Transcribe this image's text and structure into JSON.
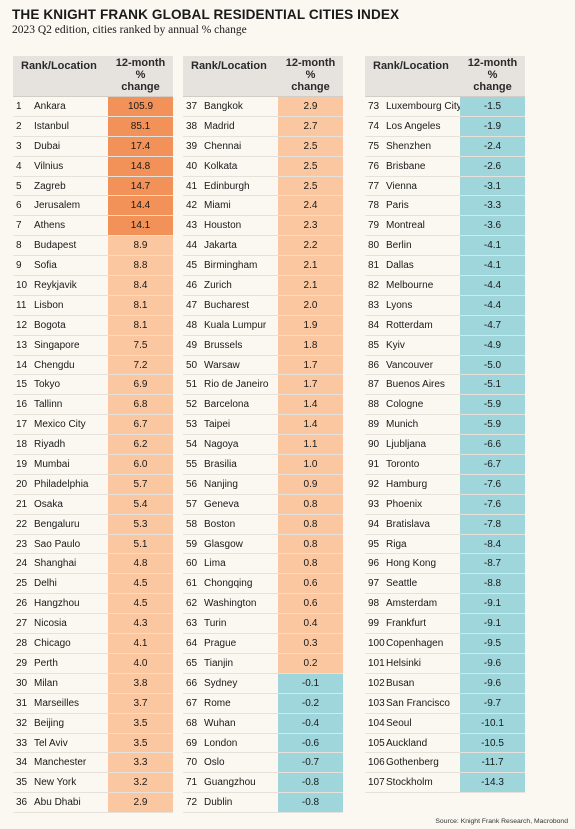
{
  "title": "THE KNIGHT FRANK GLOBAL RESIDENTIAL CITIES INDEX",
  "subtitle": "2023 Q2 edition, cities ranked by annual % change",
  "source": "Source: Knight Frank Research, Macrobond",
  "colors": {
    "dark_orange": "#f29258",
    "light_orange": "#fbc7a0",
    "teal": "#9fd6dc"
  },
  "chart_data": {
    "type": "table",
    "columns": [
      "Rank/Location",
      "12-month % change"
    ],
    "header": {
      "location": "Rank/Location",
      "change_line1": "12-month",
      "change_line2": "%",
      "change_line3": "change"
    },
    "rows": [
      {
        "rank": 1,
        "city": "Ankara",
        "change": "105.9"
      },
      {
        "rank": 2,
        "city": "Istanbul",
        "change": "85.1"
      },
      {
        "rank": 3,
        "city": "Dubai",
        "change": "17.4"
      },
      {
        "rank": 4,
        "city": "Vilnius",
        "change": "14.8"
      },
      {
        "rank": 5,
        "city": "Zagreb",
        "change": "14.7"
      },
      {
        "rank": 6,
        "city": "Jerusalem",
        "change": "14.4"
      },
      {
        "rank": 7,
        "city": "Athens",
        "change": "14.1"
      },
      {
        "rank": 8,
        "city": "Budapest",
        "change": "8.9"
      },
      {
        "rank": 9,
        "city": "Sofia",
        "change": "8.8"
      },
      {
        "rank": 10,
        "city": "Reykjavik",
        "change": "8.4"
      },
      {
        "rank": 11,
        "city": "Lisbon",
        "change": "8.1"
      },
      {
        "rank": 12,
        "city": "Bogota",
        "change": "8.1"
      },
      {
        "rank": 13,
        "city": "Singapore",
        "change": "7.5"
      },
      {
        "rank": 14,
        "city": "Chengdu",
        "change": "7.2"
      },
      {
        "rank": 15,
        "city": "Tokyo",
        "change": "6.9"
      },
      {
        "rank": 16,
        "city": "Tallinn",
        "change": "6.8"
      },
      {
        "rank": 17,
        "city": "Mexico City",
        "change": "6.7"
      },
      {
        "rank": 18,
        "city": "Riyadh",
        "change": "6.2"
      },
      {
        "rank": 19,
        "city": "Mumbai",
        "change": "6.0"
      },
      {
        "rank": 20,
        "city": "Philadelphia",
        "change": "5.7"
      },
      {
        "rank": 21,
        "city": "Osaka",
        "change": "5.4"
      },
      {
        "rank": 22,
        "city": "Bengaluru",
        "change": "5.3"
      },
      {
        "rank": 23,
        "city": "Sao Paulo",
        "change": "5.1"
      },
      {
        "rank": 24,
        "city": "Shanghai",
        "change": "4.8"
      },
      {
        "rank": 25,
        "city": "Delhi",
        "change": "4.5"
      },
      {
        "rank": 26,
        "city": "Hangzhou",
        "change": "4.5"
      },
      {
        "rank": 27,
        "city": "Nicosia",
        "change": "4.3"
      },
      {
        "rank": 28,
        "city": "Chicago",
        "change": "4.1"
      },
      {
        "rank": 29,
        "city": "Perth",
        "change": "4.0"
      },
      {
        "rank": 30,
        "city": "Milan",
        "change": "3.8"
      },
      {
        "rank": 31,
        "city": "Marseilles",
        "change": "3.7"
      },
      {
        "rank": 32,
        "city": "Beijing",
        "change": "3.5"
      },
      {
        "rank": 33,
        "city": "Tel Aviv",
        "change": "3.5"
      },
      {
        "rank": 34,
        "city": "Manchester",
        "change": "3.3"
      },
      {
        "rank": 35,
        "city": "New York",
        "change": "3.2"
      },
      {
        "rank": 36,
        "city": "Abu Dhabi",
        "change": "2.9"
      },
      {
        "rank": 37,
        "city": "Bangkok",
        "change": "2.9"
      },
      {
        "rank": 38,
        "city": "Madrid",
        "change": "2.7"
      },
      {
        "rank": 39,
        "city": "Chennai",
        "change": "2.5"
      },
      {
        "rank": 40,
        "city": "Kolkata",
        "change": "2.5"
      },
      {
        "rank": 41,
        "city": "Edinburgh",
        "change": "2.5"
      },
      {
        "rank": 42,
        "city": "Miami",
        "change": "2.4"
      },
      {
        "rank": 43,
        "city": "Houston",
        "change": "2.3"
      },
      {
        "rank": 44,
        "city": "Jakarta",
        "change": "2.2"
      },
      {
        "rank": 45,
        "city": "Birmingham",
        "change": "2.1"
      },
      {
        "rank": 46,
        "city": "Zurich",
        "change": "2.1"
      },
      {
        "rank": 47,
        "city": "Bucharest",
        "change": "2.0"
      },
      {
        "rank": 48,
        "city": "Kuala Lumpur",
        "change": "1.9"
      },
      {
        "rank": 49,
        "city": "Brussels",
        "change": "1.8"
      },
      {
        "rank": 50,
        "city": "Warsaw",
        "change": "1.7"
      },
      {
        "rank": 51,
        "city": "Rio de Janeiro",
        "change": "1.7"
      },
      {
        "rank": 52,
        "city": "Barcelona",
        "change": "1.4"
      },
      {
        "rank": 53,
        "city": "Taipei",
        "change": "1.4"
      },
      {
        "rank": 54,
        "city": "Nagoya",
        "change": "1.1"
      },
      {
        "rank": 55,
        "city": "Brasilia",
        "change": "1.0"
      },
      {
        "rank": 56,
        "city": "Nanjing",
        "change": "0.9"
      },
      {
        "rank": 57,
        "city": "Geneva",
        "change": "0.8"
      },
      {
        "rank": 58,
        "city": "Boston",
        "change": "0.8"
      },
      {
        "rank": 59,
        "city": "Glasgow",
        "change": "0.8"
      },
      {
        "rank": 60,
        "city": "Lima",
        "change": "0.8"
      },
      {
        "rank": 61,
        "city": "Chongqing",
        "change": "0.6"
      },
      {
        "rank": 62,
        "city": "Washington",
        "change": "0.6"
      },
      {
        "rank": 63,
        "city": "Turin",
        "change": "0.4"
      },
      {
        "rank": 64,
        "city": "Prague",
        "change": "0.3"
      },
      {
        "rank": 65,
        "city": "Tianjin",
        "change": "0.2"
      },
      {
        "rank": 66,
        "city": "Sydney",
        "change": "-0.1"
      },
      {
        "rank": 67,
        "city": "Rome",
        "change": "-0.2"
      },
      {
        "rank": 68,
        "city": "Wuhan",
        "change": "-0.4"
      },
      {
        "rank": 69,
        "city": "London",
        "change": "-0.6"
      },
      {
        "rank": 70,
        "city": "Oslo",
        "change": "-0.7"
      },
      {
        "rank": 71,
        "city": "Guangzhou",
        "change": "-0.8"
      },
      {
        "rank": 72,
        "city": "Dublin",
        "change": "-0.8"
      },
      {
        "rank": 73,
        "city": "Luxembourg City",
        "change": "-1.5"
      },
      {
        "rank": 74,
        "city": "Los Angeles",
        "change": "-1.9"
      },
      {
        "rank": 75,
        "city": "Shenzhen",
        "change": "-2.4"
      },
      {
        "rank": 76,
        "city": "Brisbane",
        "change": "-2.6"
      },
      {
        "rank": 77,
        "city": "Vienna",
        "change": "-3.1"
      },
      {
        "rank": 78,
        "city": "Paris",
        "change": "-3.3"
      },
      {
        "rank": 79,
        "city": "Montreal",
        "change": "-3.6"
      },
      {
        "rank": 80,
        "city": "Berlin",
        "change": "-4.1"
      },
      {
        "rank": 81,
        "city": "Dallas",
        "change": "-4.1"
      },
      {
        "rank": 82,
        "city": "Melbourne",
        "change": "-4.4"
      },
      {
        "rank": 83,
        "city": "Lyons",
        "change": "-4.4"
      },
      {
        "rank": 84,
        "city": "Rotterdam",
        "change": "-4.7"
      },
      {
        "rank": 85,
        "city": "Kyiv",
        "change": "-4.9"
      },
      {
        "rank": 86,
        "city": "Vancouver",
        "change": "-5.0"
      },
      {
        "rank": 87,
        "city": "Buenos Aires",
        "change": "-5.1"
      },
      {
        "rank": 88,
        "city": "Cologne",
        "change": "-5.9"
      },
      {
        "rank": 89,
        "city": "Munich",
        "change": "-5.9"
      },
      {
        "rank": 90,
        "city": "Ljubljana",
        "change": "-6.6"
      },
      {
        "rank": 91,
        "city": "Toronto",
        "change": "-6.7"
      },
      {
        "rank": 92,
        "city": "Hamburg",
        "change": "-7.6"
      },
      {
        "rank": 93,
        "city": "Phoenix",
        "change": "-7.6"
      },
      {
        "rank": 94,
        "city": "Bratislava",
        "change": "-7.8"
      },
      {
        "rank": 95,
        "city": "Riga",
        "change": "-8.4"
      },
      {
        "rank": 96,
        "city": "Hong Kong",
        "change": "-8.7"
      },
      {
        "rank": 97,
        "city": "Seattle",
        "change": "-8.8"
      },
      {
        "rank": 98,
        "city": "Amsterdam",
        "change": "-9.1"
      },
      {
        "rank": 99,
        "city": "Frankfurt",
        "change": "-9.1"
      },
      {
        "rank": 100,
        "city": "Copenhagen",
        "change": "-9.5"
      },
      {
        "rank": 101,
        "city": "Helsinki",
        "change": "-9.6"
      },
      {
        "rank": 102,
        "city": "Busan",
        "change": "-9.6"
      },
      {
        "rank": 103,
        "city": "San Francisco",
        "change": "-9.7"
      },
      {
        "rank": 104,
        "city": "Seoul",
        "change": "-10.1"
      },
      {
        "rank": 105,
        "city": "Auckland",
        "change": "-10.5"
      },
      {
        "rank": 106,
        "city": "Gothenberg",
        "change": "-11.7"
      },
      {
        "rank": 107,
        "city": "Stockholm",
        "change": "-14.3"
      }
    ]
  }
}
